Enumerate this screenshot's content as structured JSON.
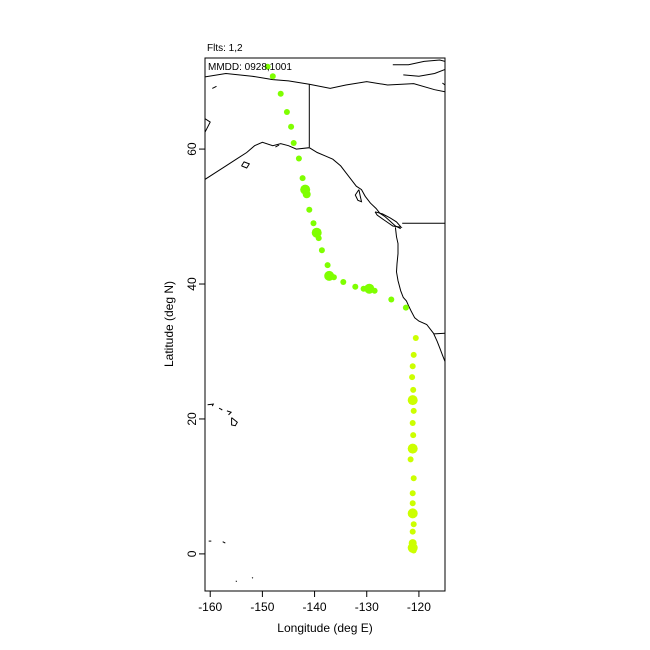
{
  "chart_data": {
    "type": "scatter",
    "title": "",
    "xlabel": "Longitude (deg E)",
    "ylabel": "Latitude (deg N)",
    "xlim": [
      -161,
      -115
    ],
    "ylim": [
      -5.5,
      73.5
    ],
    "x_ticks": [
      -160,
      -150,
      -140,
      -130,
      -120
    ],
    "y_ticks": [
      0,
      20,
      40,
      60
    ],
    "annotations": [
      "Flts: 1,2",
      "MMDD: 0928,1001"
    ],
    "grid": false,
    "series": [
      {
        "color": "#7fff00",
        "points": [
          {
            "x": -149.0,
            "y": 72.2,
            "r": 3
          },
          {
            "x": -148.0,
            "y": 70.8,
            "r": 3
          },
          {
            "x": -146.5,
            "y": 68.2,
            "r": 3
          },
          {
            "x": -145.3,
            "y": 65.5,
            "r": 3
          },
          {
            "x": -144.5,
            "y": 63.3,
            "r": 3
          },
          {
            "x": -144.0,
            "y": 60.9,
            "r": 3
          },
          {
            "x": -143.0,
            "y": 58.6,
            "r": 3
          },
          {
            "x": -142.3,
            "y": 55.7,
            "r": 3
          },
          {
            "x": -141.8,
            "y": 54.0,
            "r": 5
          },
          {
            "x": -141.5,
            "y": 53.3,
            "r": 4
          },
          {
            "x": -141.0,
            "y": 51.0,
            "r": 3
          },
          {
            "x": -140.2,
            "y": 49.0,
            "r": 3
          },
          {
            "x": -139.6,
            "y": 47.6,
            "r": 5
          },
          {
            "x": -139.2,
            "y": 46.8,
            "r": 3
          },
          {
            "x": -138.6,
            "y": 45.0,
            "r": 3
          },
          {
            "x": -137.5,
            "y": 42.8,
            "r": 3
          },
          {
            "x": -137.2,
            "y": 41.2,
            "r": 5
          },
          {
            "x": -136.3,
            "y": 41.0,
            "r": 3
          },
          {
            "x": -134.5,
            "y": 40.3,
            "r": 3
          },
          {
            "x": -132.2,
            "y": 39.6,
            "r": 3
          },
          {
            "x": -130.6,
            "y": 39.3,
            "r": 3
          },
          {
            "x": -129.5,
            "y": 39.3,
            "r": 5
          },
          {
            "x": -128.5,
            "y": 39.0,
            "r": 3
          },
          {
            "x": -125.3,
            "y": 37.7,
            "r": 3
          },
          {
            "x": -122.5,
            "y": 36.5,
            "r": 3
          }
        ]
      },
      {
        "color": "#ccff00",
        "points": [
          {
            "x": -120.6,
            "y": 32.0,
            "r": 3
          },
          {
            "x": -121.0,
            "y": 29.5,
            "r": 3
          },
          {
            "x": -121.2,
            "y": 27.8,
            "r": 3
          },
          {
            "x": -121.3,
            "y": 26.2,
            "r": 3
          },
          {
            "x": -121.1,
            "y": 24.3,
            "r": 3
          },
          {
            "x": -121.2,
            "y": 22.8,
            "r": 5
          },
          {
            "x": -121.0,
            "y": 21.2,
            "r": 3
          },
          {
            "x": -121.2,
            "y": 19.4,
            "r": 3
          },
          {
            "x": -121.1,
            "y": 17.6,
            "r": 3
          },
          {
            "x": -121.2,
            "y": 15.6,
            "r": 5
          },
          {
            "x": -121.6,
            "y": 14.0,
            "r": 3
          },
          {
            "x": -121.0,
            "y": 11.2,
            "r": 3
          },
          {
            "x": -121.2,
            "y": 9.0,
            "r": 3
          },
          {
            "x": -121.2,
            "y": 7.5,
            "r": 3
          },
          {
            "x": -121.2,
            "y": 6.0,
            "r": 5
          },
          {
            "x": -121.0,
            "y": 4.4,
            "r": 3
          },
          {
            "x": -121.2,
            "y": 3.3,
            "r": 3
          },
          {
            "x": -121.2,
            "y": 1.6,
            "r": 4
          },
          {
            "x": -121.2,
            "y": 0.9,
            "r": 5
          },
          {
            "x": -121.0,
            "y": 0.5,
            "r": 3
          }
        ]
      }
    ],
    "map_lines": [
      [
        [
          -161,
          70.7
        ],
        [
          -157,
          71.2
        ],
        [
          -152,
          70.8
        ],
        [
          -148,
          70.3
        ],
        [
          -145,
          70.1
        ],
        [
          -141,
          69.6
        ],
        [
          -137,
          69.0
        ],
        [
          -134,
          69.5
        ],
        [
          -130,
          70.0
        ],
        [
          -126,
          69.5
        ],
        [
          -121,
          69.7
        ],
        [
          -117,
          68.8
        ],
        [
          -115,
          68.5
        ]
      ],
      [
        [
          -141,
          69.6
        ],
        [
          -141,
          60.3
        ]
      ],
      [
        [
          -161,
          55.5
        ],
        [
          -159,
          56.5
        ],
        [
          -157,
          57.5
        ],
        [
          -155,
          58.5
        ],
        [
          -153,
          59.5
        ],
        [
          -151.5,
          60.5
        ],
        [
          -150,
          61.0
        ],
        [
          -148,
          60.5
        ],
        [
          -146.5,
          60.8
        ],
        [
          -145,
          60.5
        ],
        [
          -143.5,
          60.0
        ],
        [
          -141,
          60.2
        ],
        [
          -139.5,
          59.5
        ],
        [
          -138,
          59.0
        ],
        [
          -136.5,
          58.5
        ],
        [
          -135,
          57.5
        ],
        [
          -134,
          56.5
        ],
        [
          -133,
          55.5
        ],
        [
          -132,
          54.5
        ],
        [
          -131,
          54.0
        ],
        [
          -130.3,
          53.0
        ],
        [
          -129.3,
          52.0
        ],
        [
          -128.2,
          51.2
        ],
        [
          -127.5,
          50.5
        ],
        [
          -126.5,
          50.0
        ],
        [
          -125.5,
          49.3
        ],
        [
          -124.5,
          48.6
        ],
        [
          -123.5,
          48.2
        ]
      ],
      [
        [
          -124.5,
          48.4
        ],
        [
          -124.3,
          47.0
        ],
        [
          -124.0,
          46.0
        ],
        [
          -124.0,
          44.5
        ],
        [
          -124.2,
          43.0
        ],
        [
          -124.3,
          41.8
        ],
        [
          -124.0,
          40.5
        ],
        [
          -123.5,
          39.0
        ],
        [
          -123.0,
          38.0
        ],
        [
          -122.4,
          37.5
        ],
        [
          -122.0,
          36.8
        ],
        [
          -121.5,
          36.0
        ],
        [
          -120.8,
          35.0
        ],
        [
          -120.0,
          34.5
        ],
        [
          -118.5,
          34.0
        ],
        [
          -117.2,
          32.7
        ],
        [
          -116.5,
          31.5
        ],
        [
          -116.0,
          30.5
        ],
        [
          -115.5,
          29.5
        ],
        [
          -115,
          28.5
        ]
      ],
      [
        [
          -123.2,
          49.0
        ],
        [
          -115,
          49.0
        ]
      ],
      [
        [
          -117.1,
          32.6
        ],
        [
          -115,
          32.7
        ]
      ],
      [
        [
          -131.5,
          54.0
        ],
        [
          -132.2,
          53.2
        ],
        [
          -131.7,
          52.4
        ],
        [
          -131.0,
          52.2
        ],
        [
          -131.3,
          53.2
        ],
        [
          -131.5,
          54.0
        ]
      ],
      [
        [
          -128.4,
          50.7
        ],
        [
          -127.0,
          50.4
        ],
        [
          -125.5,
          49.8
        ],
        [
          -124.3,
          49.2
        ],
        [
          -123.4,
          48.4
        ],
        [
          -125.0,
          48.6
        ],
        [
          -126.5,
          49.4
        ],
        [
          -128.0,
          50.2
        ],
        [
          -128.4,
          50.7
        ]
      ],
      [
        [
          -160.5,
          22.1
        ],
        [
          -159.4,
          22.2
        ],
        [
          -159.6,
          21.9
        ]
      ],
      [
        [
          -158.3,
          21.6
        ],
        [
          -157.8,
          21.4
        ],
        [
          -157.7,
          21.3
        ]
      ],
      [
        [
          -156.8,
          21.2
        ],
        [
          -156.0,
          21.0
        ],
        [
          -156.5,
          20.6
        ]
      ],
      [
        [
          -155.9,
          20.2
        ],
        [
          -154.8,
          19.5
        ],
        [
          -155.2,
          19.0
        ],
        [
          -155.9,
          19.1
        ],
        [
          -155.9,
          20.2
        ]
      ],
      [
        [
          -161,
          62.5
        ],
        [
          -160,
          64.0
        ],
        [
          -161,
          64.5
        ]
      ],
      [
        [
          -125,
          72.5
        ],
        [
          -122,
          72.5
        ],
        [
          -119,
          73.0
        ],
        [
          -116,
          73.2
        ],
        [
          -115,
          73.0
        ]
      ],
      [
        [
          -123,
          71.0
        ],
        [
          -120,
          70.8
        ],
        [
          -117,
          71.2
        ],
        [
          -115,
          71.8
        ]
      ],
      [
        [
          -115.5,
          69.8
        ],
        [
          -115,
          69.5
        ]
      ],
      [
        [
          -160.3,
          1.9
        ],
        [
          -159.8,
          1.9
        ]
      ],
      [
        [
          -157.6,
          1.8
        ],
        [
          -157.1,
          1.6
        ]
      ],
      [
        [
          -155.1,
          -4.0
        ],
        [
          -154.9,
          -4.1
        ]
      ],
      [
        [
          -152.0,
          -3.5
        ],
        [
          -151.8,
          -3.6
        ]
      ],
      [
        [
          -159.6,
          69.0
        ],
        [
          -158.8,
          69.3
        ]
      ],
      [
        [
          -154.0,
          57.5
        ],
        [
          -153.0,
          57.2
        ],
        [
          -152.5,
          57.8
        ],
        [
          -153.5,
          58.1
        ],
        [
          -154.0,
          57.5
        ]
      ],
      [
        [
          -147.5,
          60.3
        ],
        [
          -146.8,
          60.6
        ]
      ]
    ]
  }
}
